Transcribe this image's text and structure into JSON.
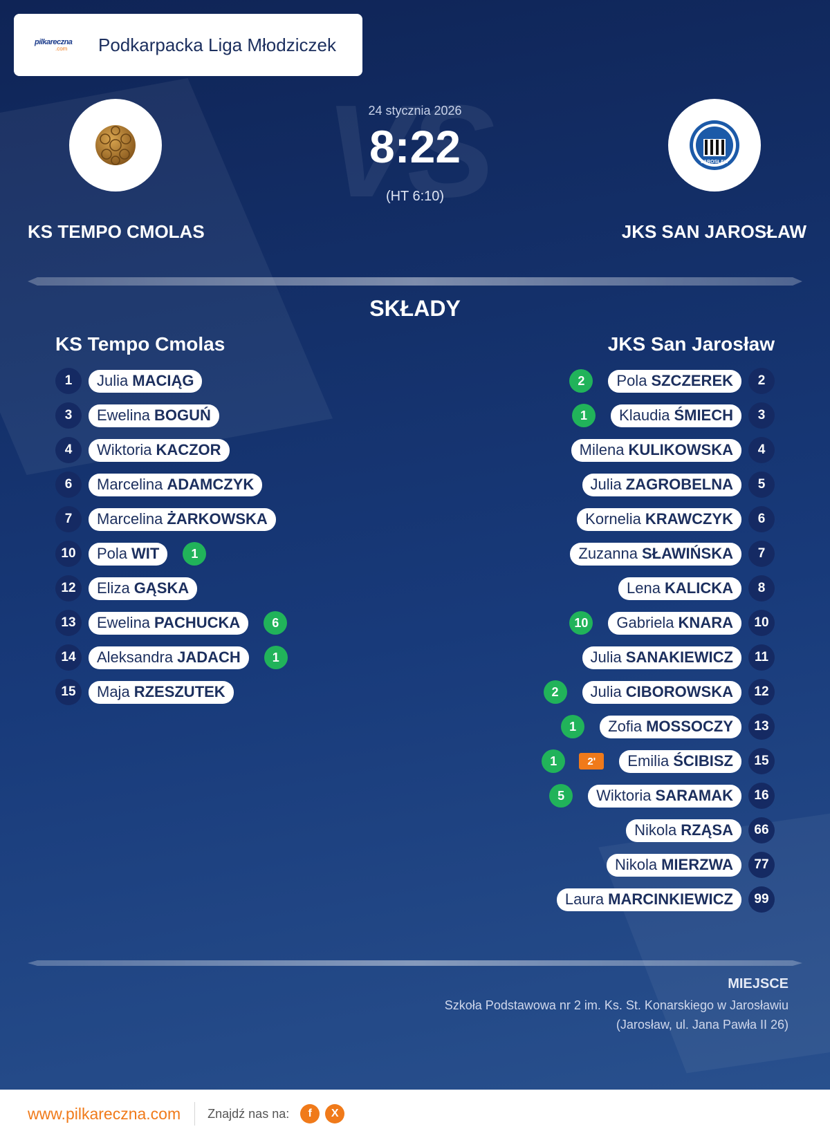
{
  "header": {
    "logo_main": "pilkareczna",
    "logo_sub": ".com",
    "league": "Podkarpacka Liga Młodziczek"
  },
  "match": {
    "date": "24 stycznia 2026",
    "score": "8:22",
    "halftime": "(HT 6:10)",
    "vs_text": "VS"
  },
  "teams": {
    "home": {
      "title": "KS TEMPO CMOLAS",
      "name": "KS Tempo Cmolas",
      "logo_icon": "handball-icon"
    },
    "away": {
      "title": "JKS SAN JAROSŁAW",
      "name": "JKS San Jarosław",
      "logo_icon": "club-crest-icon",
      "crest_text": "JAROSŁAW"
    }
  },
  "section_title": "SKŁADY",
  "home_players": [
    {
      "number": "1",
      "first": "Julia",
      "last": "MACIĄG",
      "goals": ""
    },
    {
      "number": "3",
      "first": "Ewelina",
      "last": "BOGUŃ",
      "goals": ""
    },
    {
      "number": "4",
      "first": "Wiktoria",
      "last": "KACZOR",
      "goals": ""
    },
    {
      "number": "6",
      "first": "Marcelina",
      "last": "ADAMCZYK",
      "goals": ""
    },
    {
      "number": "7",
      "first": "Marcelina",
      "last": "ŻARKOWSKA",
      "goals": ""
    },
    {
      "number": "10",
      "first": "Pola",
      "last": "WIT",
      "goals": "1"
    },
    {
      "number": "12",
      "first": "Eliza",
      "last": "GĄSKA",
      "goals": ""
    },
    {
      "number": "13",
      "first": "Ewelina",
      "last": "PACHUCKA",
      "goals": "6"
    },
    {
      "number": "14",
      "first": "Aleksandra",
      "last": "JADACH",
      "goals": "1"
    },
    {
      "number": "15",
      "first": "Maja",
      "last": "RZESZUTEK",
      "goals": ""
    }
  ],
  "away_players": [
    {
      "number": "2",
      "first": "Pola",
      "last": "SZCZEREK",
      "goals": "2",
      "penalty": ""
    },
    {
      "number": "3",
      "first": "Klaudia",
      "last": "ŚMIECH",
      "goals": "1",
      "penalty": ""
    },
    {
      "number": "4",
      "first": "Milena",
      "last": "KULIKOWSKA",
      "goals": "",
      "penalty": ""
    },
    {
      "number": "5",
      "first": "Julia",
      "last": "ZAGROBELNA",
      "goals": "",
      "penalty": ""
    },
    {
      "number": "6",
      "first": "Kornelia",
      "last": "KRAWCZYK",
      "goals": "",
      "penalty": ""
    },
    {
      "number": "7",
      "first": "Zuzanna",
      "last": "SŁAWIŃSKA",
      "goals": "",
      "penalty": ""
    },
    {
      "number": "8",
      "first": "Lena",
      "last": "KALICKA",
      "goals": "",
      "penalty": ""
    },
    {
      "number": "10",
      "first": "Gabriela",
      "last": "KNARA",
      "goals": "10",
      "penalty": ""
    },
    {
      "number": "11",
      "first": "Julia",
      "last": "SANAKIEWICZ",
      "goals": "",
      "penalty": ""
    },
    {
      "number": "12",
      "first": "Julia",
      "last": "CIBOROWSKA",
      "goals": "2",
      "penalty": ""
    },
    {
      "number": "13",
      "first": "Zofia",
      "last": "MOSSOCZY",
      "goals": "1",
      "penalty": ""
    },
    {
      "number": "15",
      "first": "Emilia",
      "last": "ŚCIBISZ",
      "goals": "1",
      "penalty": "2'"
    },
    {
      "number": "16",
      "first": "Wiktoria",
      "last": "SARAMAK",
      "goals": "5",
      "penalty": ""
    },
    {
      "number": "66",
      "first": "Nikola",
      "last": "RZĄSA",
      "goals": "",
      "penalty": ""
    },
    {
      "number": "77",
      "first": "Nikola",
      "last": "MIERZWA",
      "goals": "",
      "penalty": ""
    },
    {
      "number": "99",
      "first": "Laura",
      "last": "MARCINKIEWICZ",
      "goals": "",
      "penalty": ""
    }
  ],
  "venue": {
    "label": "MIEJSCE",
    "line1": "Szkoła Podstawowa nr 2 im. Ks. St. Konarskiego w Jarosławiu",
    "line2": "(Jarosław, ul. Jana Pawła II 26)"
  },
  "footer": {
    "site": "www.pilkareczna.com",
    "find_us": "Znajdź nas na:",
    "social": [
      {
        "icon": "facebook-icon",
        "glyph": "f"
      },
      {
        "icon": "x-icon",
        "glyph": "X"
      }
    ]
  },
  "colors": {
    "accent": "#f07a1a",
    "goal": "#21b35a",
    "navy": "#152a63"
  }
}
